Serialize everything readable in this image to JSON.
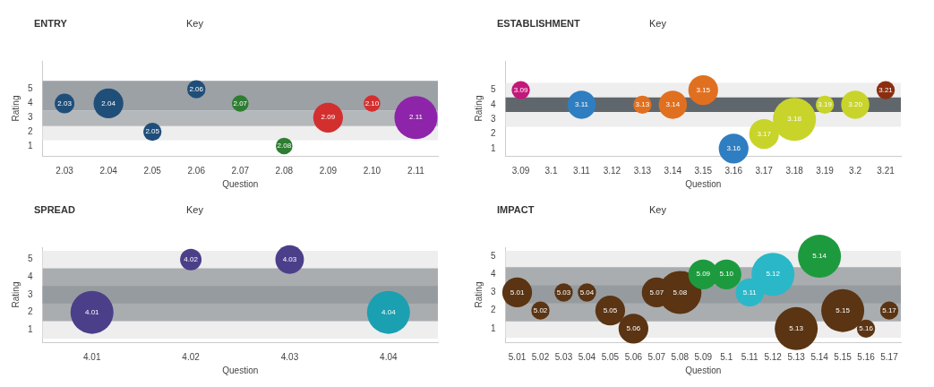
{
  "chart_data": [
    {
      "type": "bubble",
      "title": "ENTRY",
      "xlabel": "Question",
      "ylabel": "Rating",
      "categories": [
        "2.03",
        "2.04",
        "2.05",
        "2.06",
        "2.07",
        "2.08",
        "2.09",
        "2.10",
        "2.11"
      ],
      "values": [
        4,
        4,
        2,
        5,
        4,
        1,
        3,
        4,
        3
      ],
      "sizes": [
        0.21,
        0.48,
        0.18,
        0.18,
        0.15,
        0.15,
        0.48,
        0.15,
        1
      ],
      "annotations": [
        "Key",
        {
          "text": "2.03",
          "x": "2.03",
          "y": 4
        },
        {
          "text": "2.04",
          "x": "2.04",
          "y": 4
        },
        {
          "text": "2.05",
          "x": "2.05",
          "y": 2
        },
        {
          "text": "2.06",
          "x": "2.06",
          "y": 5
        },
        {
          "text": "2.07",
          "x": "2.07",
          "y": 4
        },
        {
          "text": "2.08",
          "x": "2.08",
          "y": 1
        },
        {
          "text": "2.09",
          "x": "2.09",
          "y": 3
        },
        {
          "text": "2.10",
          "x": "2.10",
          "y": 4
        },
        {
          "text": "2.11",
          "x": "2.11",
          "y": 3
        }
      ],
      "colors": [
        "#1f4e79",
        "#1f4e79",
        "#1f4e79",
        "#1f4e79",
        "#2e7d32",
        "#2e7d32",
        "#d32f2f",
        "#d32f2f",
        "#8e24aa"
      ],
      "ylim": [
        0.3,
        7
      ],
      "yticks": [
        1,
        2,
        3,
        4,
        5
      ],
      "bands": [
        {
          "axis": "y",
          "from": 1.4,
          "to": 2.4,
          "color": "#eeeeee"
        },
        {
          "axis": "y",
          "from": 2.4,
          "to": 3.5,
          "color": "#b4b8bb"
        },
        {
          "axis": "y",
          "from": 3.5,
          "to": 5.6,
          "color": "#9ca1a5"
        }
      ]
    },
    {
      "type": "bubble",
      "title": "ESTABLISHMENT",
      "xlabel": "Question",
      "ylabel": "Rating",
      "categories": [
        "3.09",
        "3.1",
        "3.11",
        "3.12",
        "3.13",
        "3.14",
        "3.15",
        "3.16",
        "3.17",
        "3.18",
        "3.19",
        "3.2",
        "3.21"
      ],
      "values": [
        5,
        null,
        4,
        null,
        4,
        4,
        5,
        1,
        2,
        3,
        4,
        4,
        5
      ],
      "sizes": [
        0.18,
        null,
        0.43,
        null,
        0.18,
        0.43,
        0.48,
        0.48,
        0.48,
        1,
        0.18,
        0.43,
        0.18
      ],
      "annotations": [
        "Key",
        {
          "text": "3.09",
          "x": "3.09",
          "y": 5
        },
        {
          "text": "3.11",
          "x": "3.11",
          "y": 4
        },
        {
          "text": "3.13",
          "x": "3.13",
          "y": 4
        },
        {
          "text": "3.14",
          "x": "3.14",
          "y": 4
        },
        {
          "text": "3.15",
          "x": "3.15",
          "y": 5
        },
        {
          "text": "3.16",
          "x": "3.16",
          "y": 1
        },
        {
          "text": "3.17",
          "x": "3.17",
          "y": 2
        },
        {
          "text": "3.18",
          "x": "3.18",
          "y": 3
        },
        {
          "text": "3.19",
          "x": "3.19",
          "y": 4
        },
        {
          "text": "3.20",
          "x": "3.2",
          "y": 4
        },
        {
          "text": "3.21",
          "x": "3.21",
          "y": 5
        }
      ],
      "colors": [
        "#c2187a",
        null,
        "#2f7ec1",
        null,
        "#e07020",
        "#e07020",
        "#e07020",
        "#2f7ec1",
        "#c8d42a",
        "#c8d42a",
        "#c8d42a",
        "#c8d42a",
        "#8b2e10"
      ],
      "ylim": [
        0.5,
        7
      ],
      "yticks": [
        1,
        2,
        3,
        4,
        5
      ],
      "bands": [
        {
          "axis": "y",
          "from": 2.5,
          "to": 5.5,
          "color": "#eeeeee"
        },
        {
          "axis": "y",
          "from": 3.5,
          "to": 4.5,
          "color": "#5f676c"
        }
      ]
    },
    {
      "type": "bubble",
      "title": "SPREAD",
      "xlabel": "Question",
      "ylabel": "Rating",
      "categories": [
        "4.01",
        "4.02",
        "4.03",
        "4.04"
      ],
      "values": [
        2,
        5,
        5,
        2
      ],
      "sizes": [
        1,
        0.25,
        0.44,
        1
      ],
      "annotations": [
        "Key",
        {
          "text": "4.01",
          "x": "4.01",
          "y": 2
        },
        {
          "text": "4.02",
          "x": "4.02",
          "y": 5
        },
        {
          "text": "4.03",
          "x": "4.03",
          "y": 5
        },
        {
          "text": "4.04",
          "x": "4.04",
          "y": 2
        }
      ],
      "colors": [
        "#4b3f8a",
        "#4b3f8a",
        "#4b3f8a",
        "#1aa0b0"
      ],
      "ylim": [
        0.3,
        5.7
      ],
      "yticks": [
        1,
        2,
        3,
        4,
        5
      ],
      "bands": [
        {
          "axis": "y",
          "from": 0.5,
          "to": 5.5,
          "color": "#eeeeee"
        },
        {
          "axis": "y",
          "from": 1.5,
          "to": 4.5,
          "color": "#a9adb0"
        },
        {
          "axis": "y",
          "from": 2.5,
          "to": 3.5,
          "color": "#969b9f"
        }
      ]
    },
    {
      "type": "bubble",
      "title": "IMPACT",
      "xlabel": "Question",
      "ylabel": "Rating",
      "categories": [
        "5.01",
        "5.02",
        "5.03",
        "5.04",
        "5.05",
        "5.06",
        "5.07",
        "5.08",
        "5.09",
        "5.1",
        "5.11",
        "5.12",
        "5.13",
        "5.14",
        "5.15",
        "5.16",
        "5.17"
      ],
      "values": [
        3,
        2,
        3,
        3,
        2,
        1,
        3,
        3,
        4,
        4,
        3,
        4,
        1,
        5,
        2,
        1,
        2
      ],
      "sizes": [
        0.48,
        0.18,
        0.18,
        0.18,
        0.48,
        0.48,
        0.48,
        1,
        0.48,
        0.48,
        0.43,
        1,
        1,
        1,
        1,
        0.18,
        0.18
      ],
      "annotations": [
        "Key",
        {
          "text": "5.01",
          "x": "5.01",
          "y": 3
        },
        {
          "text": "5.02",
          "x": "5.02",
          "y": 2
        },
        {
          "text": "5.03",
          "x": "5.03",
          "y": 3
        },
        {
          "text": "5.04",
          "x": "5.04",
          "y": 3
        },
        {
          "text": "5.05",
          "x": "5.05",
          "y": 2
        },
        {
          "text": "5.06",
          "x": "5.06",
          "y": 1
        },
        {
          "text": "5.07",
          "x": "5.07",
          "y": 3
        },
        {
          "text": "5.08",
          "x": "5.08",
          "y": 3
        },
        {
          "text": "5.09",
          "x": "5.09",
          "y": 4
        },
        {
          "text": "5.10",
          "x": "5.1",
          "y": 4
        },
        {
          "text": "5.11",
          "x": "5.11",
          "y": 3
        },
        {
          "text": "5.12",
          "x": "5.12",
          "y": 4
        },
        {
          "text": "5.13",
          "x": "5.13",
          "y": 1
        },
        {
          "text": "5.14",
          "x": "5.14",
          "y": 5
        },
        {
          "text": "5.15",
          "x": "5.15",
          "y": 2
        },
        {
          "text": "5.16",
          "x": "5.16",
          "y": 1
        },
        {
          "text": "5.17",
          "x": "5.17",
          "y": 2
        }
      ],
      "colors": [
        "#5a3413",
        "#5a3413",
        "#5a3413",
        "#5a3413",
        "#5a3413",
        "#5a3413",
        "#5a3413",
        "#5a3413",
        "#1e9a3e",
        "#1e9a3e",
        "#2ab8c8",
        "#2ab8c8",
        "#5a3413",
        "#1e9a3e",
        "#5a3413",
        "#5a3413",
        "#5a3413"
      ],
      "ylim": [
        0.25,
        5.5
      ],
      "yticks": [
        1,
        2,
        3,
        4,
        5
      ],
      "bands": [
        {
          "axis": "y",
          "from": 0.5,
          "to": 5.3,
          "color": "#eeeeee"
        },
        {
          "axis": "y",
          "from": 1.4,
          "to": 4.4,
          "color": "#a9adb0"
        },
        {
          "axis": "y",
          "from": 2.4,
          "to": 3.4,
          "color": "#969b9f"
        }
      ]
    }
  ]
}
